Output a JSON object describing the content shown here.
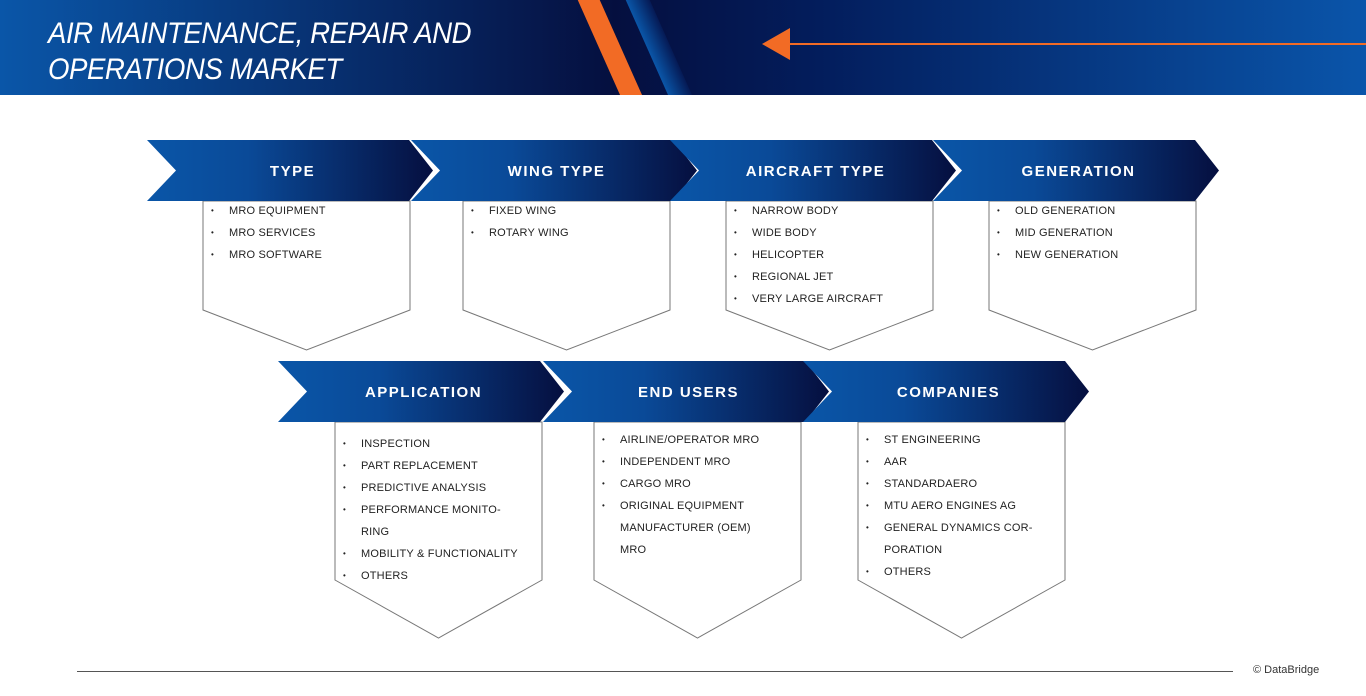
{
  "header": {
    "title_line1": "AIR MAINTENANCE, REPAIR AND",
    "title_line2": "OPERATIONS MARKET"
  },
  "colors": {
    "accent": "#f26b25",
    "blue": "#0a56a8",
    "navy": "#050f3f"
  },
  "segments": [
    {
      "label": "TYPE",
      "items": [
        "MRO EQUIPMENT",
        "MRO SERVICES",
        "MRO SOFTWARE"
      ]
    },
    {
      "label": "WING TYPE",
      "items": [
        "FIXED WING",
        "ROTARY WING"
      ]
    },
    {
      "label": "AIRCRAFT TYPE",
      "items": [
        "NARROW BODY",
        "WIDE BODY",
        "HELICOPTER",
        "REGIONAL JET",
        "VERY LARGE AIRCRAFT"
      ]
    },
    {
      "label": "GENERATION",
      "items": [
        "OLD GENERATION",
        "MID GENERATION",
        "NEW GENERATION"
      ]
    },
    {
      "label": "APPLICATION",
      "items": [
        "INSPECTION",
        "PART REPLACEMENT",
        "PREDICTIVE ANALYSIS",
        "PERFORMANCE MONITO-",
        "RING",
        "MOBILITY & FUNCTIONALITY",
        "OTHERS"
      ]
    },
    {
      "label": "END USERS",
      "items": [
        "AIRLINE/OPERATOR MRO",
        "INDEPENDENT MRO",
        "CARGO MRO",
        "ORIGINAL EQUIPMENT",
        "MANUFACTURER (OEM)",
        "MRO"
      ]
    },
    {
      "label": "COMPANIES",
      "items": [
        "ST ENGINEERING",
        "AAR",
        "STANDARDAERO",
        " MTU AERO ENGINES AG",
        " GENERAL DYNAMICS COR-",
        "PORATION",
        "OTHERS"
      ]
    }
  ],
  "footer": {
    "copyright": "© DataBridge"
  }
}
